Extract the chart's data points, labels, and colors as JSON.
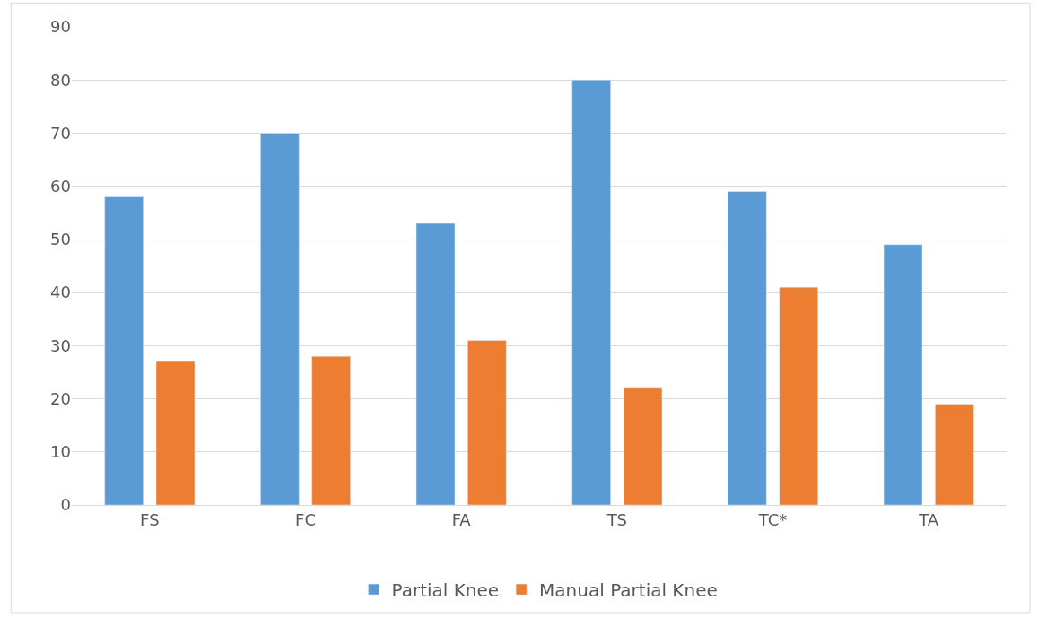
{
  "chart_data": {
    "type": "bar",
    "categories": [
      "FS",
      "FC",
      "FA",
      "TS",
      "TC*",
      "TA"
    ],
    "series": [
      {
        "name": "Partial Knee",
        "color": "#5b9bd5",
        "values": [
          58,
          70,
          53,
          80,
          59,
          49
        ]
      },
      {
        "name": "Manual Partial Knee",
        "color": "#ed7d31",
        "values": [
          27,
          28,
          31,
          22,
          41,
          19
        ]
      }
    ],
    "ylim": [
      0,
      90
    ],
    "yticks": [
      0,
      10,
      20,
      30,
      40,
      50,
      60,
      70,
      80,
      90
    ],
    "grid": "y",
    "legend": "bottom"
  }
}
